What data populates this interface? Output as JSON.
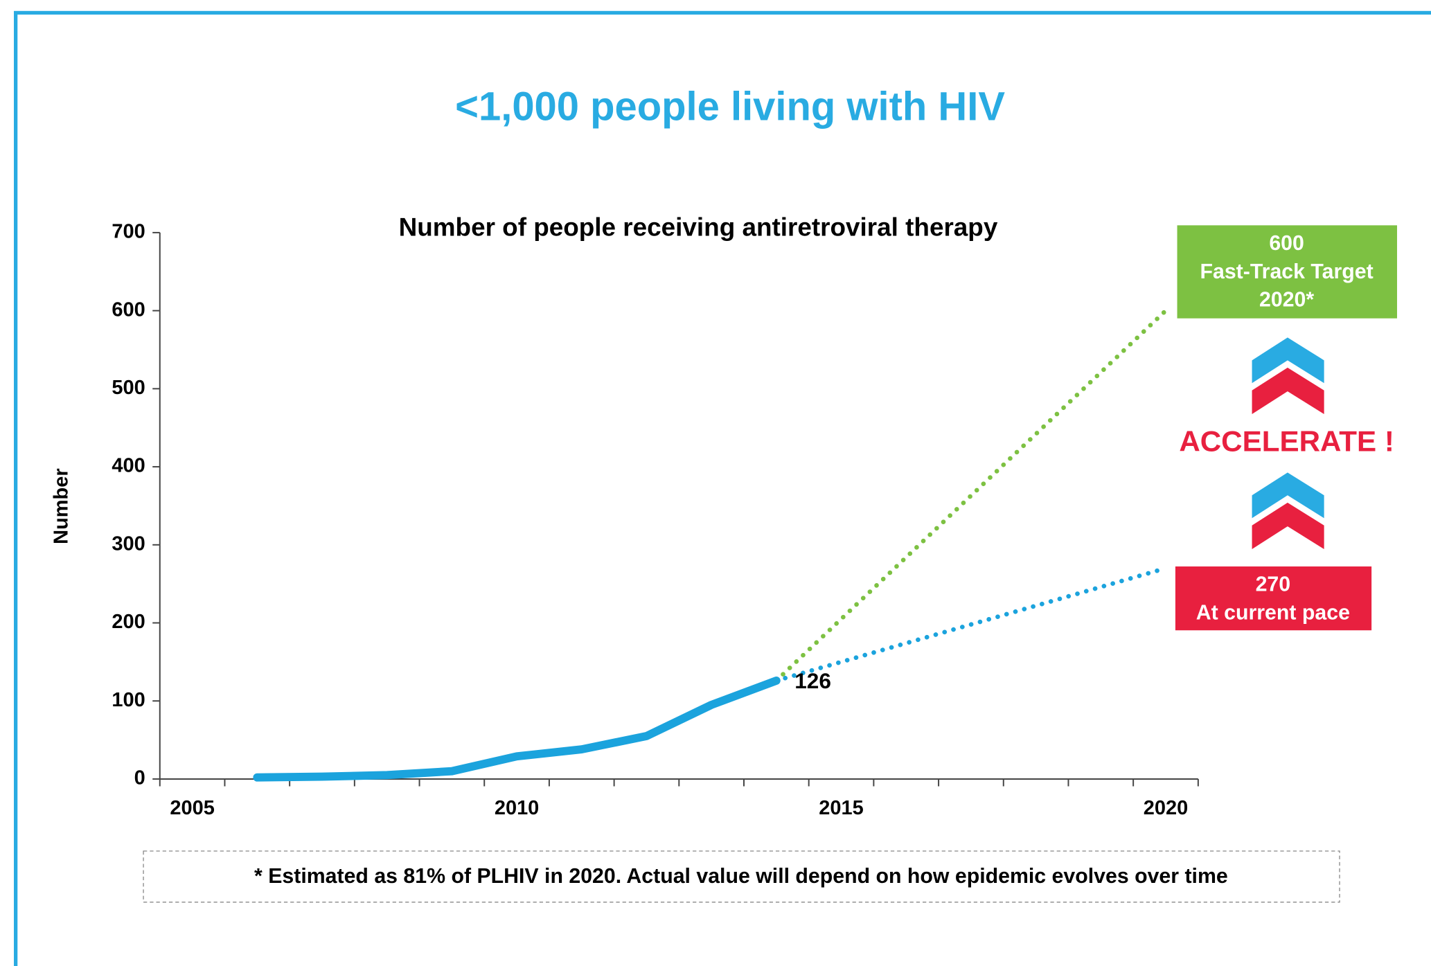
{
  "chart_data": {
    "type": "line",
    "title": "<1,000 people living with HIV",
    "subtitle": "Number of people receiving antiretroviral therapy",
    "y_label": "Number",
    "xlim": [
      2004.5,
      2020.5
    ],
    "xticks": [
      2005,
      2010,
      2015,
      2020
    ],
    "ylim": [
      0,
      700
    ],
    "yticks": [
      0,
      100,
      200,
      300,
      400,
      500,
      600,
      700
    ],
    "series": [
      {
        "color": "#1ba3dd",
        "line_style": "solid",
        "x": [
          2006,
          2007,
          2008,
          2009,
          2010,
          2011,
          2012,
          2013,
          2014
        ],
        "values": [
          2,
          3,
          5,
          10,
          29,
          38,
          55,
          95,
          126
        ]
      },
      {
        "color": "#7dc142",
        "line_style": "dotted",
        "x": [
          2014,
          2020
        ],
        "values": [
          126,
          600
        ]
      },
      {
        "color": "#1ba3dd",
        "line_style": "dotted",
        "x": [
          2014,
          2020
        ],
        "values": [
          126,
          270
        ]
      }
    ],
    "annotations": {
      "target": [
        "Fast-Track Target",
        "2020*"
      ],
      "current": "At current pace",
      "accelerate": "ACCELERATE !",
      "footnote": "* Estimated as 81% of PLHIV in 2020. Actual value will depend on how epidemic evolves over time"
    }
  }
}
